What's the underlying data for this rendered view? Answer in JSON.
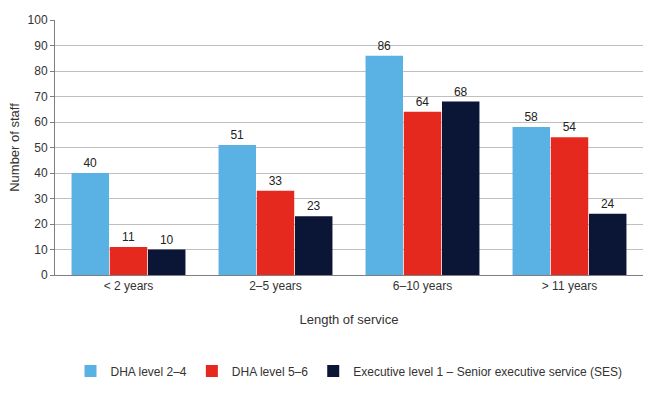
{
  "chart_data": {
    "type": "bar",
    "x_label": "Length of service",
    "y_label": "Number of staff",
    "categories": [
      "< 2 years",
      "2–5 years",
      "6–10 years",
      "> 11 years"
    ],
    "series": [
      {
        "name": "DHA level 2–4",
        "color": "#5ab1e3",
        "values": [
          40,
          51,
          86,
          58
        ]
      },
      {
        "name": "DHA level 5–6",
        "color": "#e6291f",
        "values": [
          11,
          33,
          64,
          54
        ]
      },
      {
        "name": "Executive level 1 – Senior executive service (SES)",
        "color": "#0b1535",
        "values": [
          10,
          23,
          68,
          24
        ]
      }
    ],
    "ylim": [
      0,
      100
    ],
    "yticks": [
      0,
      10,
      20,
      30,
      40,
      50,
      60,
      70,
      80,
      90,
      100
    ],
    "grid": true,
    "legend": "bottom",
    "data_labels": true
  }
}
